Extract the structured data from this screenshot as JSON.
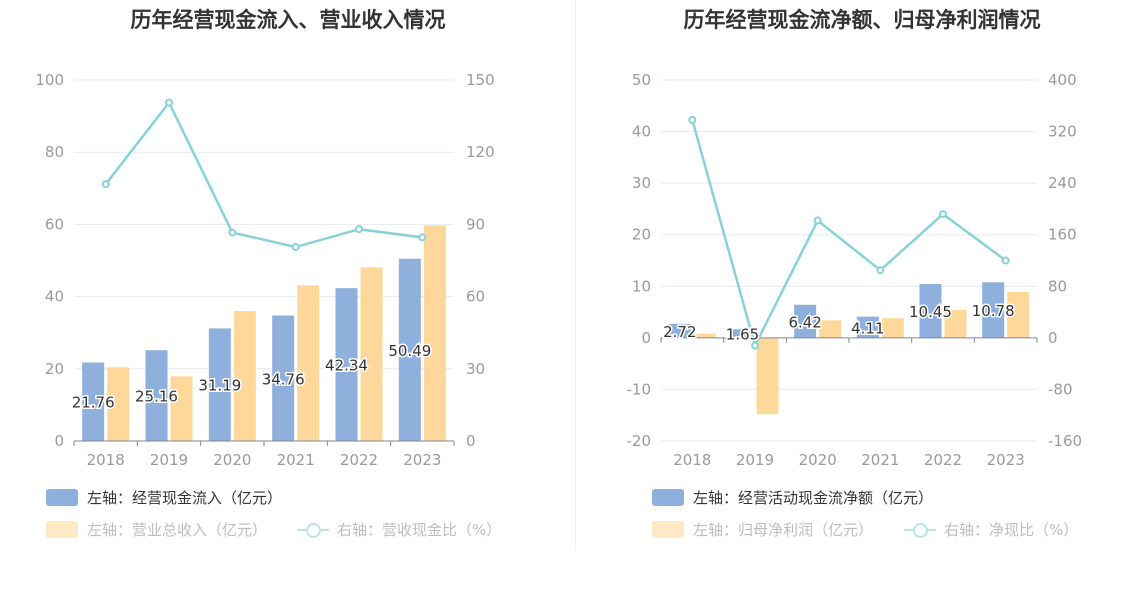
{
  "chart_data": [
    {
      "type": "bar",
      "title": "历年经营现金流入、营业收入情况",
      "categories": [
        "2018",
        "2019",
        "2020",
        "2021",
        "2022",
        "2023"
      ],
      "ylim": [
        0,
        100
      ],
      "y_ticks": [
        "0",
        "20",
        "40",
        "60",
        "80",
        "100"
      ],
      "y2lim": [
        0,
        150
      ],
      "y2_ticks": [
        "0",
        "30",
        "60",
        "90",
        "120",
        "150"
      ],
      "grid": true,
      "legend_position": "bottom-left",
      "series": [
        {
          "name": "左轴：经营现金流入（亿元）",
          "type": "bar",
          "axis": "left",
          "color": "#8fb0dd",
          "values": [
            21.76,
            25.16,
            31.19,
            34.76,
            42.34,
            50.49
          ],
          "labels": [
            "21.76",
            "25.16",
            "31.19",
            "34.76",
            "42.34",
            "50.49"
          ]
        },
        {
          "name": "左轴：营业总收入（亿元）",
          "type": "bar",
          "axis": "left",
          "color": "#fdd89a",
          "values": [
            20.4,
            17.9,
            36.0,
            43.1,
            48.1,
            59.7
          ]
        },
        {
          "name": "右轴：营收现金比（%）",
          "type": "line",
          "axis": "right",
          "color": "#87d2d8",
          "values": [
            106.7,
            140.6,
            86.6,
            80.6,
            88.0,
            84.6
          ]
        }
      ]
    },
    {
      "type": "bar",
      "title": "历年经营现金流净额、归母净利润情况",
      "categories": [
        "2018",
        "2019",
        "2020",
        "2021",
        "2022",
        "2023"
      ],
      "ylim": [
        -20,
        50
      ],
      "y_ticks": [
        "-20",
        "-10",
        "0",
        "10",
        "20",
        "30",
        "40",
        "50"
      ],
      "y2lim": [
        -160,
        400
      ],
      "y2_ticks": [
        "-160",
        "-80",
        "0",
        "80",
        "160",
        "240",
        "320",
        "400"
      ],
      "grid": true,
      "legend_position": "bottom-left",
      "series": [
        {
          "name": "左轴：经营活动现金流净额（亿元）",
          "type": "bar",
          "axis": "left",
          "color": "#8fb0dd",
          "values": [
            2.72,
            1.65,
            6.42,
            4.11,
            10.45,
            10.78
          ],
          "labels": [
            "2.72",
            "1.65",
            "6.42",
            "4.11",
            "10.45",
            "10.78"
          ]
        },
        {
          "name": "左轴：归母净利润（亿元）",
          "type": "bar",
          "axis": "left",
          "color": "#fdd89a",
          "values": [
            0.8,
            -14.8,
            3.4,
            3.8,
            5.4,
            8.9
          ]
        },
        {
          "name": "右轴：净现比（%）",
          "type": "line",
          "axis": "right",
          "color": "#87d2d8",
          "values": [
            338,
            -12,
            182,
            105,
            192,
            120
          ]
        }
      ]
    }
  ],
  "legend_icons": {
    "line_series": "line-with-circle-marker-icon",
    "bar_series": "rounded-rect-swatch-icon"
  },
  "colors": {
    "bar1": "#8fb0dd",
    "bar2": "#fdd89a",
    "line": "#87d2d8",
    "grid": "#e6e9f4",
    "axis_text": "#9a9a9a"
  }
}
